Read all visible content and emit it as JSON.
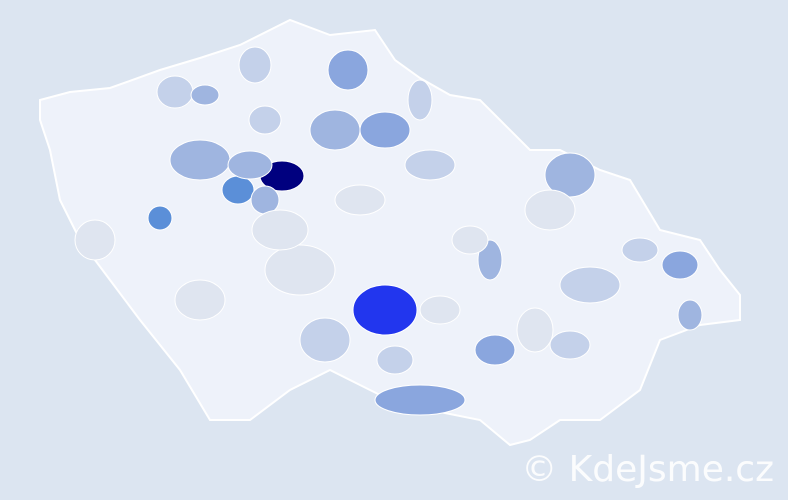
{
  "map": {
    "colors": {
      "background": "#dce5f1",
      "base": "#eef2fa",
      "light": "#dfe5f0",
      "level1": "#c4d1ea",
      "level2": "#9fb5e0",
      "level3": "#8aa6de",
      "level4": "#5b8fd8",
      "level5": "#2236ee",
      "level6": "#00007f",
      "border": "#ffffff"
    }
  },
  "watermark": "© KdeJsme.cz"
}
